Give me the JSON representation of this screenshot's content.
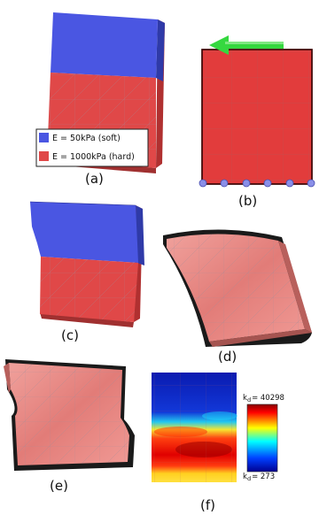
{
  "panels": {
    "a": {
      "label": "(a)"
    },
    "b": {
      "label": "(b)"
    },
    "c": {
      "label": "(c)"
    },
    "d": {
      "label": "(d)"
    },
    "e": {
      "label": "(e)"
    },
    "f": {
      "label": "(f)"
    }
  },
  "legend": {
    "soft": {
      "text": "E = 50kPa (soft)",
      "color": "#4a56e2"
    },
    "hard": {
      "text": "E = 1000kPa (hard)",
      "color": "#e04848"
    }
  },
  "colorbar": {
    "max_prefix": "k",
    "max_sub": "d",
    "max_text": "= 40298",
    "min_prefix": "k",
    "min_sub": "d",
    "min_text": "= 273"
  },
  "colors": {
    "soft_blue": "#4a56e2",
    "hard_red": "#e04848",
    "deformed_pink": "#e8837f",
    "arrow_green": "#35d83f",
    "fixed_nodes": "#8a8fe8"
  }
}
